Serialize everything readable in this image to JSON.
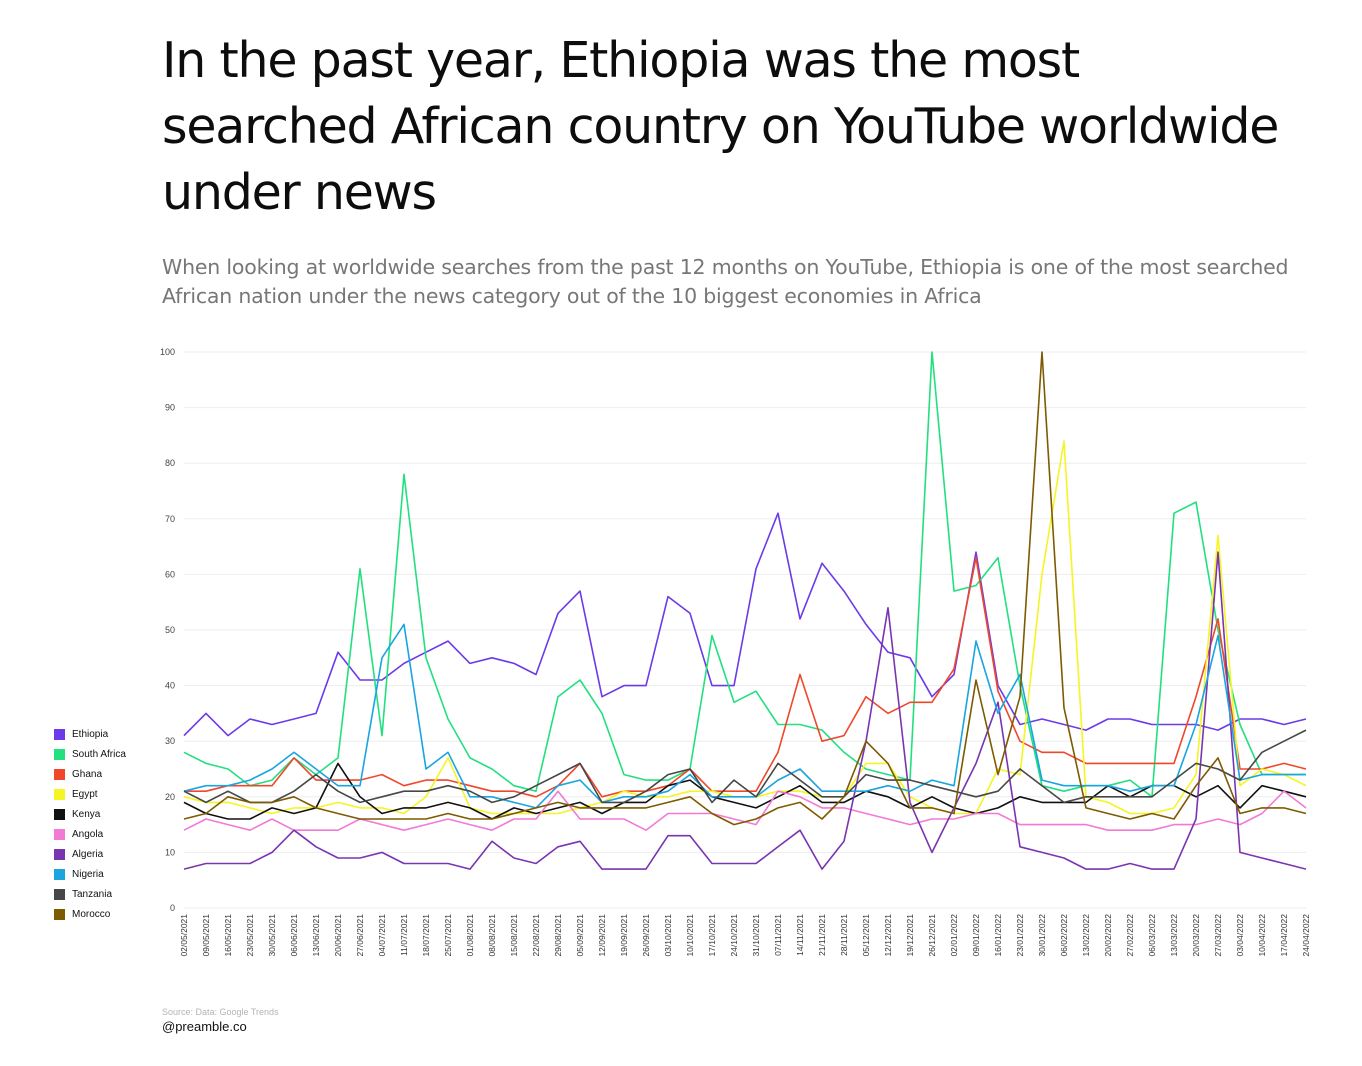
{
  "header": {
    "title": "In the past year, Ethiopia was the most searched African country on YouTube worldwide under news",
    "subtitle": "When looking at worldwide searches from the past 12 months on YouTube, Ethiopia is one of the most searched African nation under the news category out of the 10 biggest economies in Africa"
  },
  "footer": {
    "source": "Source: Data: Google Trends",
    "handle": "@preamble.co"
  },
  "chart_data": {
    "type": "line",
    "title": "In the past year, Ethiopia was the most searched African country on YouTube worldwide under news",
    "subtitle": "When looking at worldwide searches from the past 12 months on YouTube, Ethiopia is one of the most searched African nation under the news category out of the 10 biggest economies in Africa",
    "xlabel": "",
    "ylabel": "",
    "ylim": [
      0,
      100
    ],
    "yticks": [
      0,
      10,
      20,
      30,
      40,
      50,
      60,
      70,
      80,
      90,
      100
    ],
    "grid": "horizontal",
    "legend_position": "left",
    "x": [
      "02/05/2021",
      "09/05/2021",
      "16/05/2021",
      "23/05/2021",
      "30/05/2021",
      "06/06/2021",
      "13/06/2021",
      "20/06/2021",
      "27/06/2021",
      "04/07/2021",
      "11/07/2021",
      "18/07/2021",
      "25/07/2021",
      "01/08/2021",
      "08/08/2021",
      "15/08/2021",
      "22/08/2021",
      "29/08/2021",
      "05/09/2021",
      "12/09/2021",
      "19/09/2021",
      "26/09/2021",
      "03/10/2021",
      "10/10/2021",
      "17/10/2021",
      "24/10/2021",
      "31/10/2021",
      "07/11/2021",
      "14/11/2021",
      "21/11/2021",
      "28/11/2021",
      "05/12/2021",
      "12/12/2021",
      "19/12/2021",
      "26/12/2021",
      "02/01/2022",
      "09/01/2022",
      "16/01/2022",
      "23/01/2022",
      "30/01/2022",
      "06/02/2022",
      "13/02/2022",
      "20/02/2022",
      "27/02/2022",
      "06/03/2022",
      "13/03/2022",
      "20/03/2022",
      "27/03/2022",
      "03/04/2022",
      "10/04/2022",
      "17/04/2022",
      "24/04/2022"
    ],
    "series": [
      {
        "name": "Ethiopia",
        "color": "#6c3ae8",
        "values": [
          31,
          35,
          31,
          34,
          33,
          34,
          35,
          46,
          41,
          41,
          44,
          46,
          48,
          44,
          45,
          44,
          42,
          53,
          57,
          38,
          40,
          40,
          56,
          53,
          40,
          40,
          61,
          71,
          52,
          62,
          57,
          51,
          46,
          45,
          38,
          42,
          64,
          40,
          33,
          34,
          33,
          32,
          34,
          34,
          33,
          33,
          33,
          32,
          34,
          34,
          33,
          34
        ]
      },
      {
        "name": "South Africa",
        "color": "#22e07f",
        "values": [
          28,
          26,
          25,
          22,
          23,
          27,
          24,
          27,
          61,
          31,
          78,
          45,
          34,
          27,
          25,
          22,
          21,
          38,
          41,
          35,
          24,
          23,
          23,
          25,
          49,
          37,
          39,
          33,
          33,
          32,
          28,
          25,
          24,
          23,
          100,
          57,
          58,
          63,
          40,
          22,
          21,
          22,
          22,
          23,
          20,
          71,
          73,
          50,
          33,
          24,
          24,
          24
        ]
      },
      {
        "name": "Ghana",
        "color": "#f0472b",
        "values": [
          21,
          21,
          22,
          22,
          22,
          27,
          23,
          23,
          23,
          24,
          22,
          23,
          23,
          22,
          21,
          21,
          20,
          22,
          26,
          20,
          21,
          21,
          22,
          25,
          21,
          21,
          21,
          28,
          42,
          30,
          31,
          38,
          35,
          37,
          37,
          43,
          63,
          39,
          30,
          28,
          28,
          26,
          26,
          26,
          26,
          26,
          38,
          52,
          25,
          25,
          26,
          25
        ]
      },
      {
        "name": "Egypt",
        "color": "#f5f523",
        "values": [
          20,
          19,
          19,
          18,
          17,
          18,
          18,
          19,
          18,
          18,
          17,
          20,
          27,
          18,
          17,
          17,
          17,
          17,
          18,
          19,
          21,
          20,
          20,
          21,
          21,
          20,
          20,
          21,
          21,
          20,
          20,
          26,
          26,
          20,
          18,
          17,
          17,
          25,
          24,
          60,
          84,
          20,
          19,
          17,
          17,
          18,
          24,
          67,
          22,
          25,
          24,
          22
        ]
      },
      {
        "name": "Kenya",
        "color": "#111111",
        "values": [
          19,
          17,
          16,
          16,
          18,
          17,
          18,
          26,
          20,
          17,
          18,
          18,
          19,
          18,
          16,
          18,
          17,
          18,
          19,
          17,
          19,
          19,
          22,
          23,
          20,
          19,
          18,
          20,
          22,
          19,
          19,
          21,
          20,
          18,
          20,
          18,
          17,
          18,
          20,
          19,
          19,
          19,
          22,
          20,
          22,
          22,
          20,
          22,
          18,
          22,
          21,
          20
        ]
      },
      {
        "name": "Angola",
        "color": "#f27ad6",
        "values": [
          14,
          16,
          15,
          14,
          16,
          14,
          14,
          14,
          16,
          15,
          14,
          15,
          16,
          15,
          14,
          16,
          16,
          21,
          16,
          16,
          16,
          14,
          17,
          17,
          17,
          16,
          15,
          21,
          20,
          18,
          18,
          17,
          16,
          15,
          16,
          16,
          17,
          17,
          15,
          15,
          15,
          15,
          14,
          14,
          14,
          15,
          15,
          16,
          15,
          17,
          21,
          18
        ]
      },
      {
        "name": "Algeria",
        "color": "#7a34b0",
        "values": [
          7,
          8,
          8,
          8,
          10,
          14,
          11,
          9,
          9,
          10,
          8,
          8,
          8,
          7,
          12,
          9,
          8,
          11,
          12,
          7,
          7,
          7,
          13,
          13,
          8,
          8,
          8,
          11,
          14,
          7,
          12,
          30,
          54,
          19,
          10,
          18,
          26,
          37,
          11,
          10,
          9,
          7,
          7,
          8,
          7,
          7,
          16,
          64,
          10,
          9,
          8,
          7
        ]
      },
      {
        "name": "Nigeria",
        "color": "#1aa4e0",
        "values": [
          21,
          22,
          22,
          23,
          25,
          28,
          25,
          22,
          22,
          45,
          51,
          25,
          28,
          20,
          20,
          19,
          18,
          22,
          23,
          19,
          20,
          20,
          21,
          24,
          20,
          20,
          20,
          23,
          25,
          21,
          21,
          21,
          22,
          21,
          23,
          22,
          48,
          35,
          42,
          23,
          22,
          22,
          22,
          21,
          22,
          22,
          33,
          49,
          23,
          24,
          24,
          24
        ]
      },
      {
        "name": "Tanzania",
        "color": "#474747",
        "values": [
          21,
          19,
          21,
          19,
          19,
          21,
          24,
          21,
          19,
          20,
          21,
          21,
          22,
          21,
          19,
          20,
          22,
          24,
          26,
          19,
          19,
          21,
          24,
          25,
          19,
          23,
          20,
          26,
          23,
          20,
          20,
          24,
          23,
          23,
          22,
          21,
          20,
          21,
          25,
          22,
          19,
          20,
          20,
          20,
          20,
          23,
          26,
          25,
          23,
          28,
          30,
          32
        ]
      },
      {
        "name": "Morocco",
        "color": "#7e5a00",
        "values": [
          16,
          17,
          20,
          19,
          19,
          20,
          18,
          17,
          16,
          16,
          16,
          16,
          17,
          16,
          16,
          17,
          18,
          19,
          18,
          18,
          18,
          18,
          19,
          20,
          17,
          15,
          16,
          18,
          19,
          16,
          20,
          30,
          26,
          18,
          18,
          17,
          41,
          24,
          38,
          100,
          36,
          18,
          17,
          16,
          17,
          16,
          22,
          27,
          17,
          18,
          18,
          17
        ]
      }
    ]
  }
}
